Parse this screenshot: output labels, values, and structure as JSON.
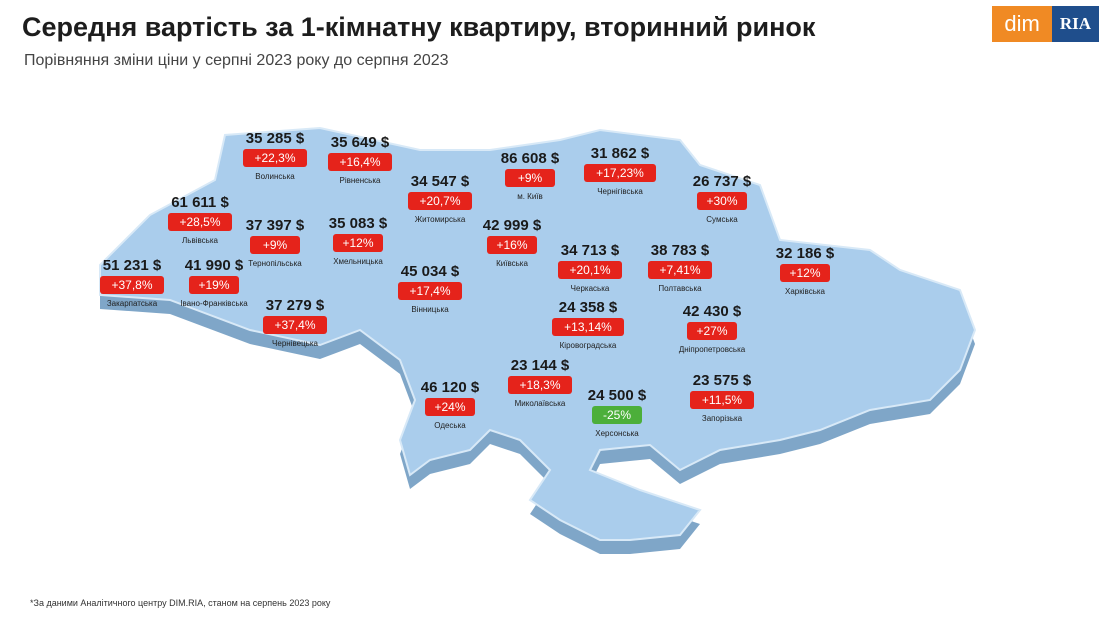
{
  "header": {
    "title": "Середня вартість за 1-кімнатну квартиру, вторинний ринок",
    "subtitle": "Порівняння зміни ціни у серпні 2023 року до серпня 2023",
    "logo": [
      "dim",
      "RIA"
    ]
  },
  "regions": [
    {
      "name": "Волинська",
      "price": "35 285 $",
      "change": "+22,3%"
    },
    {
      "name": "Рівненська",
      "price": "35 649 $",
      "change": "+16,4%"
    },
    {
      "name": "Львівська",
      "price": "61 611 $",
      "change": "+28,5%"
    },
    {
      "name": "Тернопільська",
      "price": "37 397 $",
      "change": "+9%"
    },
    {
      "name": "Хмельницька",
      "price": "35 083 $",
      "change": "+12%"
    },
    {
      "name": "Житомирська",
      "price": "34 547 $",
      "change": "+20,7%"
    },
    {
      "name": "м. Київ",
      "price": "86 608 $",
      "change": "+9%"
    },
    {
      "name": "Київська",
      "price": "42 999 $",
      "change": "+16%"
    },
    {
      "name": "Чернігівська",
      "price": "31 862 $",
      "change": "+17,23%"
    },
    {
      "name": "Сумська",
      "price": "26 737 $",
      "change": "+30%"
    },
    {
      "name": "Закарпатська",
      "price": "51 231 $",
      "change": "+37,8%"
    },
    {
      "name": "Івано-Франківська",
      "price": "41 990 $",
      "change": "+19%"
    },
    {
      "name": "Чернівецька",
      "price": "37 279 $",
      "change": "+37,4%"
    },
    {
      "name": "Вінницька",
      "price": "45 034 $",
      "change": "+17,4%"
    },
    {
      "name": "Черкаська",
      "price": "34 713 $",
      "change": "+20,1%"
    },
    {
      "name": "Полтавська",
      "price": "38 783 $",
      "change": "+7,41%"
    },
    {
      "name": "Харківська",
      "price": "32 186 $",
      "change": "+12%"
    },
    {
      "name": "Кіровоградська",
      "price": "24 358 $",
      "change": "+13,14%"
    },
    {
      "name": "Дніпропетровська",
      "price": "42 430 $",
      "change": "+27%"
    },
    {
      "name": "Одеська",
      "price": "46 120 $",
      "change": "+24%"
    },
    {
      "name": "Миколаївська",
      "price": "23 144 $",
      "change": "+18,3%"
    },
    {
      "name": "Херсонська",
      "price": "24 500 $",
      "change": "-25%"
    },
    {
      "name": "Запорізька",
      "price": "23 575 $",
      "change": "+11,5%"
    }
  ],
  "footnote": "*За даними Аналітичного центру DIM.RIA, станом на серпень 2023 року"
}
